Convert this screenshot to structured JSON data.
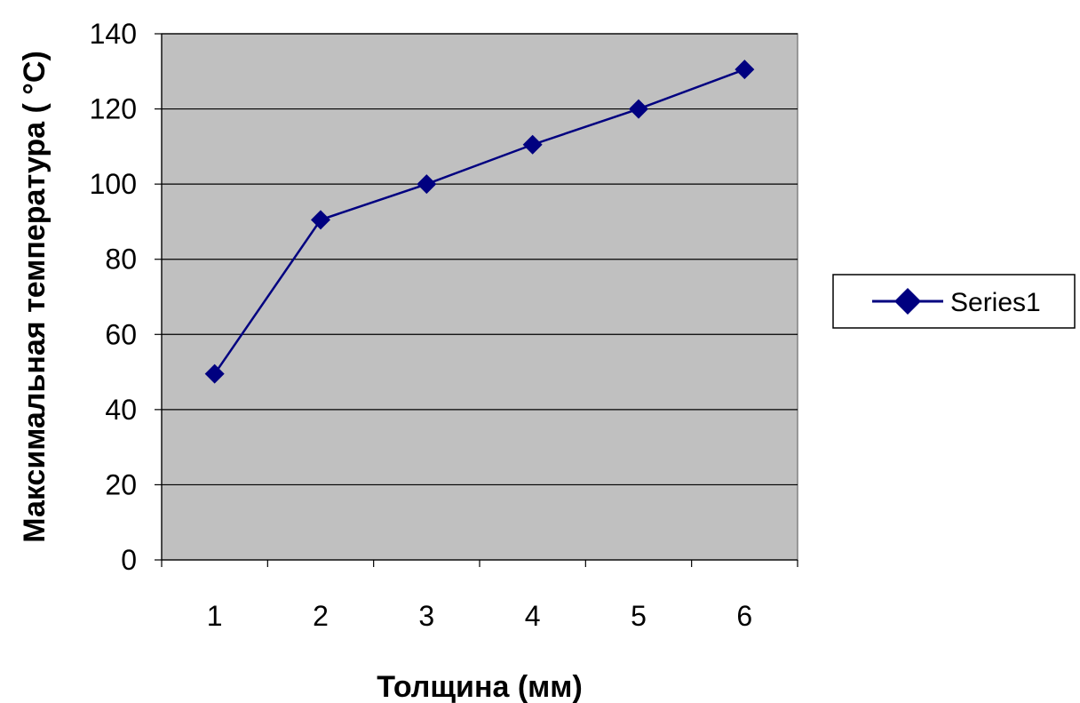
{
  "chart_data": {
    "type": "line",
    "title": "",
    "xlabel": "Толщина (мм)",
    "ylabel": "Максимальная температура ( °C)",
    "categories": [
      "1",
      "2",
      "3",
      "4",
      "5",
      "6"
    ],
    "series": [
      {
        "name": "Series1",
        "values": [
          49.5,
          90.5,
          100,
          110.5,
          120,
          130.5
        ],
        "color": "#000080",
        "marker": "diamond"
      }
    ],
    "ylim": [
      0,
      140
    ],
    "yticks": [
      0,
      20,
      40,
      60,
      80,
      100,
      120,
      140
    ],
    "grid": true,
    "plot_background": "#c0c0c0",
    "legend_position": "right"
  }
}
